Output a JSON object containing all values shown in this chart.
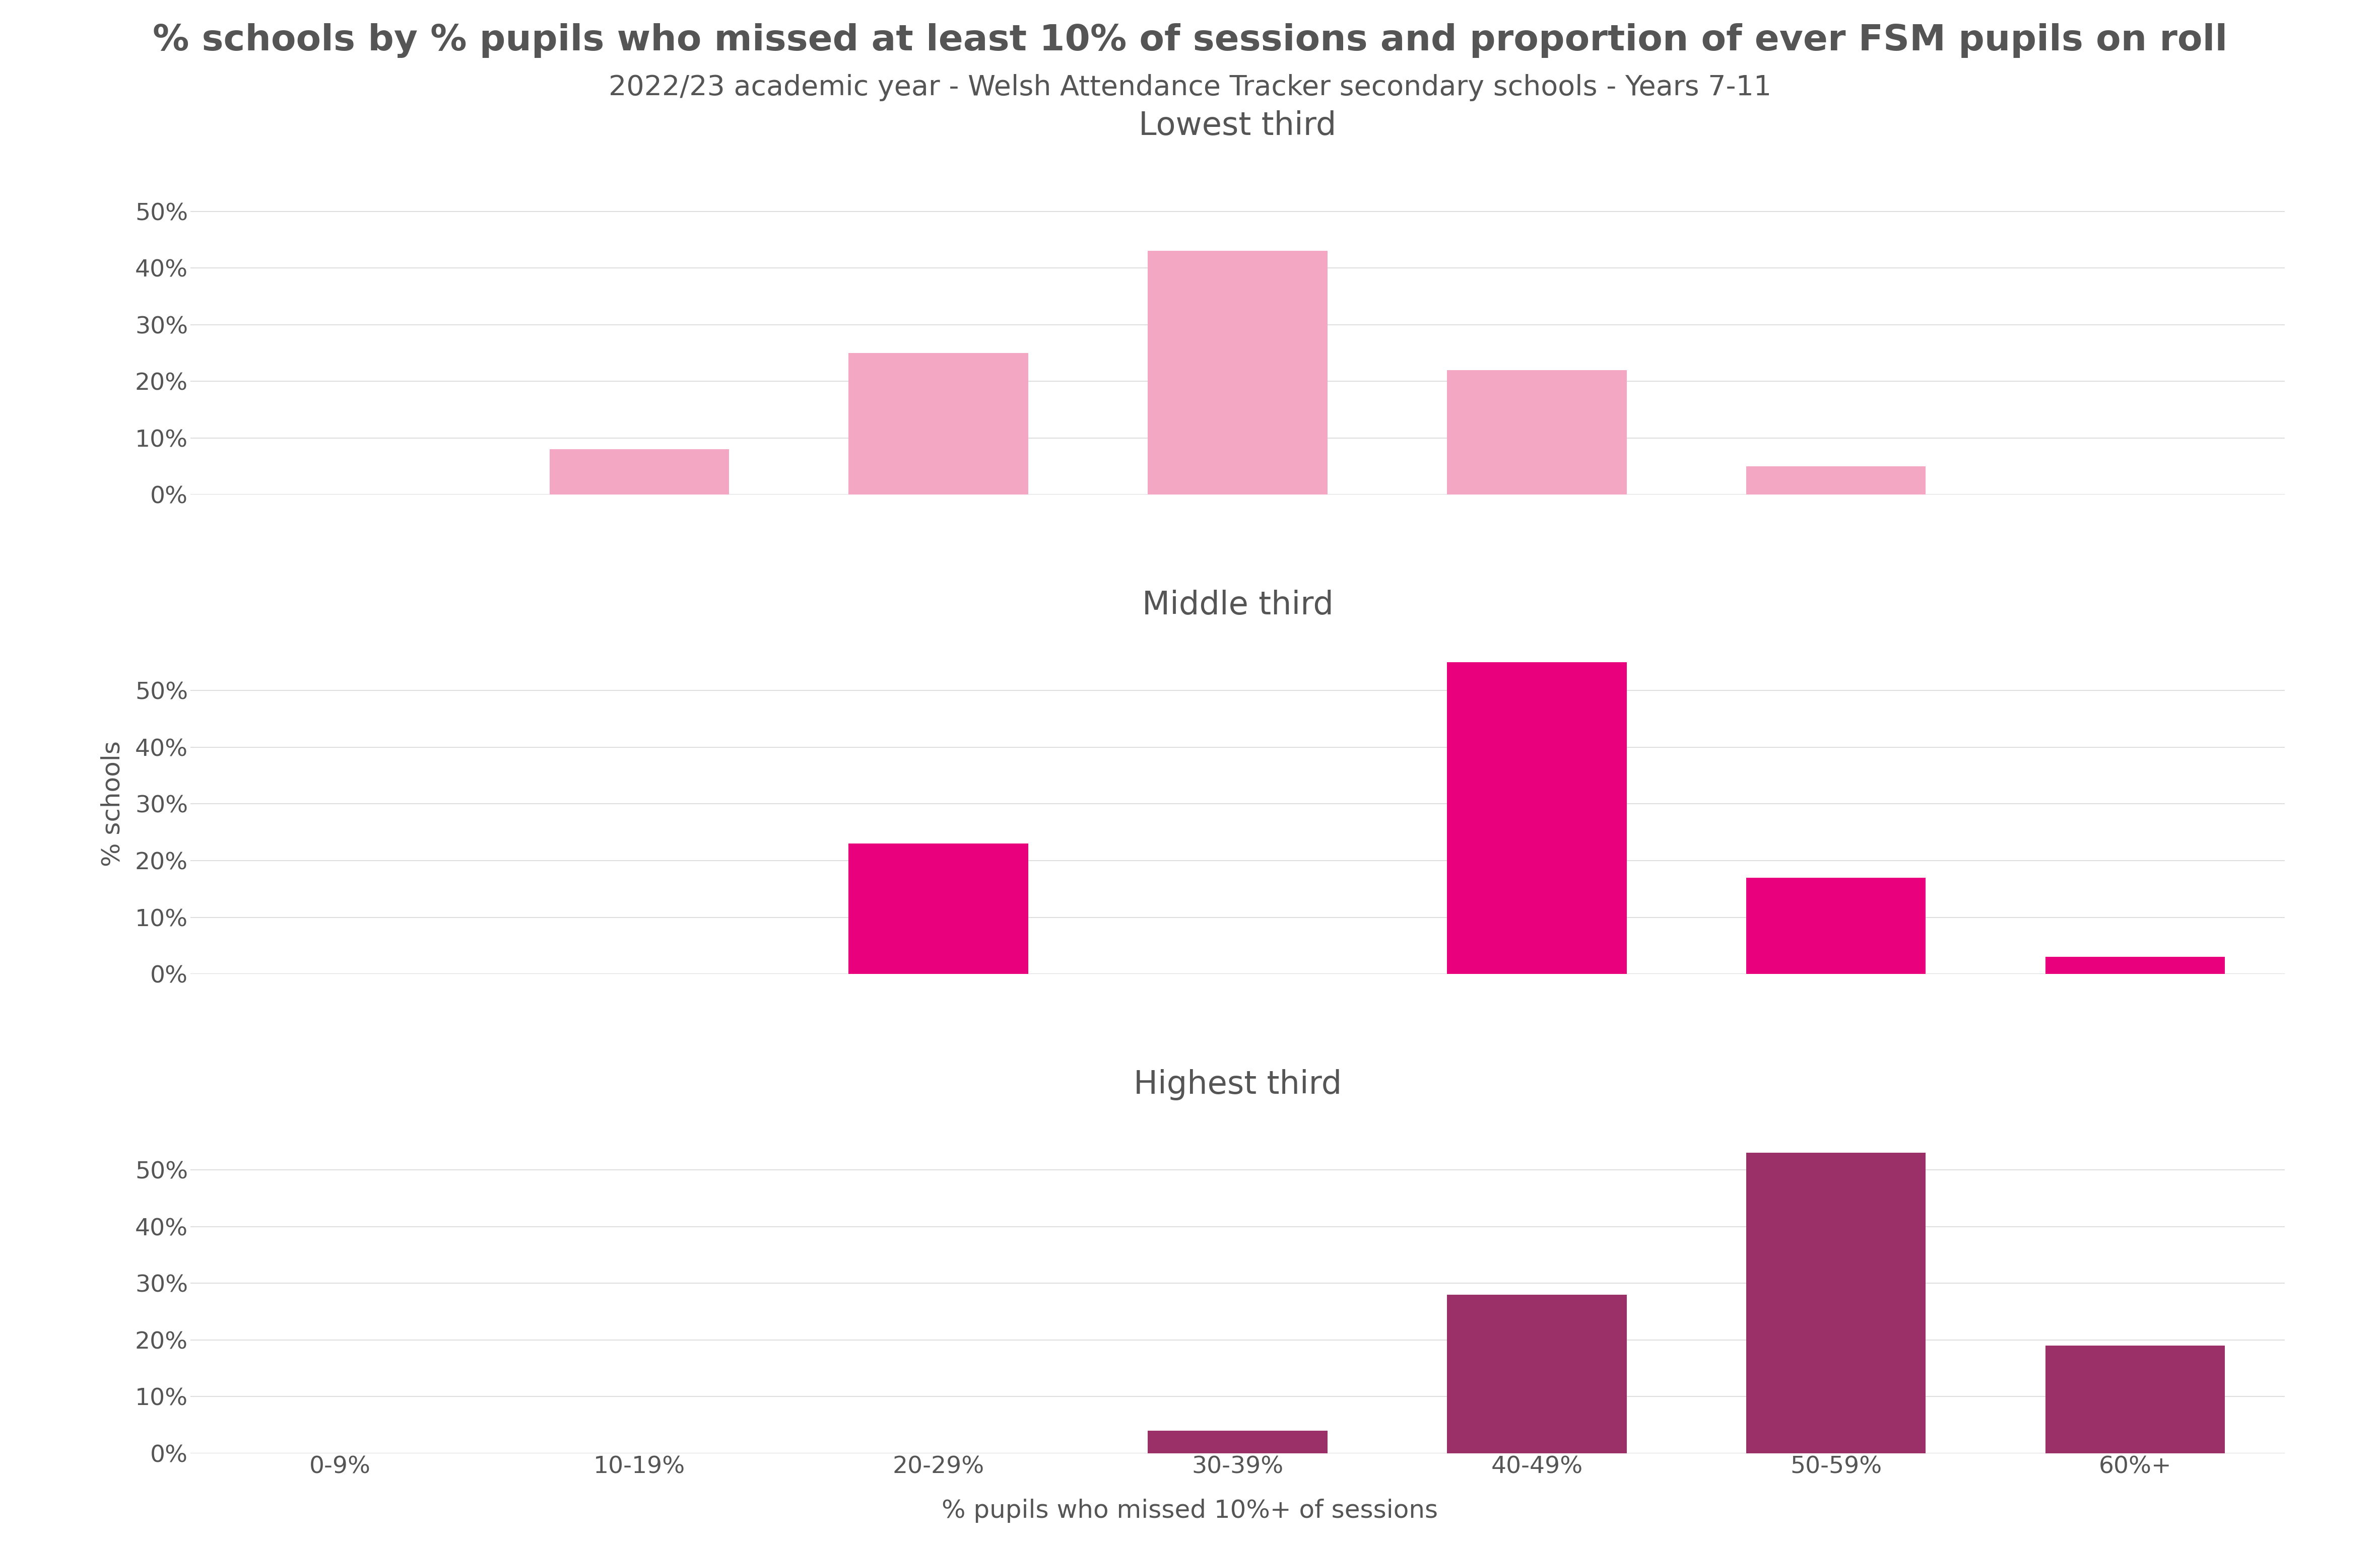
{
  "title": "% schools by % pupils who missed at least 10% of sessions and proportion of ever FSM pupils on roll",
  "subtitle": "2022/23 academic year - Welsh Attendance Tracker secondary schools - Years 7-11",
  "xlabel": "% pupils who missed 10%+ of sessions",
  "ylabel": "% schools",
  "categories": [
    "0-9%",
    "10-19%",
    "20-29%",
    "30-39%",
    "40-49%",
    "50-59%",
    "60%+"
  ],
  "subplot_titles": [
    "Lowest third",
    "Middle third",
    "Highest third"
  ],
  "subplot_colors": [
    "#f4a7c3",
    "#e8007d",
    "#9b3068"
  ],
  "bar_data": [
    [
      0,
      8,
      25,
      43,
      22,
      5,
      0
    ],
    [
      0,
      0,
      23,
      0,
      55,
      17,
      3
    ],
    [
      0,
      0,
      0,
      4,
      28,
      53,
      19
    ]
  ],
  "ylim": [
    0,
    60
  ],
  "yticks": [
    0,
    10,
    20,
    30,
    40,
    50
  ],
  "ytick_labels": [
    "0%",
    "10%",
    "20%",
    "30%",
    "40%",
    "50%"
  ],
  "background_color": "#ffffff",
  "title_fontsize": 52,
  "subtitle_fontsize": 40,
  "subplot_title_fontsize": 46,
  "axis_label_fontsize": 36,
  "tick_fontsize": 34,
  "bar_width": 0.6,
  "grid_color": "#d8d8d8",
  "text_color": "#555555"
}
